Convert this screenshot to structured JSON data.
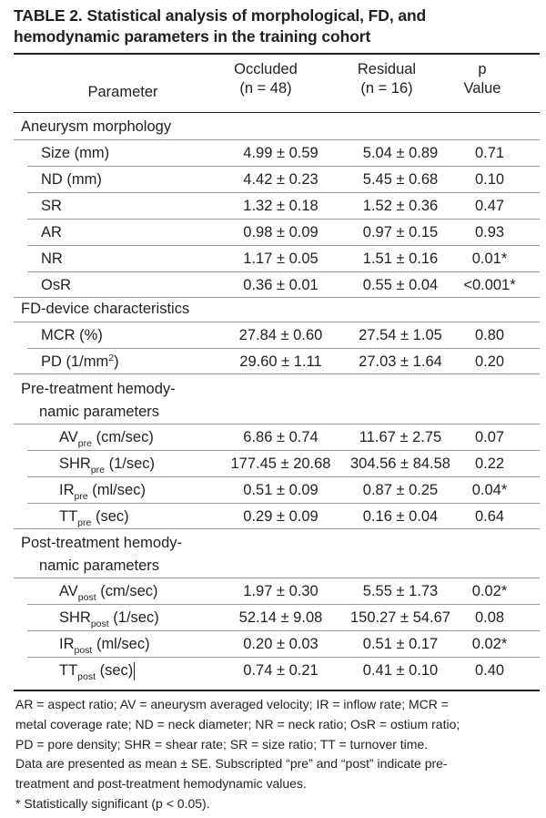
{
  "title": {
    "line1": "TABLE 2. Statistical analysis of morphological, FD, and",
    "line2": "hemodynamic parameters in the training cohort"
  },
  "header": {
    "parameter": "Parameter",
    "occluded_line1": "Occluded",
    "occluded_line2": "(n = 48)",
    "residual_line1": "Residual",
    "residual_line2": "(n = 16)",
    "p_line1": "p",
    "p_line2": "Value"
  },
  "sections": {
    "morphology": "Aneurysm morphology",
    "device": "FD-device characteristics",
    "pre_line1": "Pre-treatment hemody-",
    "pre_line2": "namic parameters",
    "post_line1": "Post-treatment hemody-",
    "post_line2": "namic parameters"
  },
  "rows": {
    "size": {
      "label": "Size (mm)",
      "occluded": "4.99 ± 0.59",
      "residual": "5.04 ± 0.89",
      "p": "0.71"
    },
    "nd": {
      "label": "ND (mm)",
      "occluded": "4.42 ± 0.23",
      "residual": "5.45 ± 0.68",
      "p": "0.10"
    },
    "sr": {
      "label": "SR",
      "occluded": "1.32 ± 0.18",
      "residual": "1.52 ± 0.36",
      "p": "0.47"
    },
    "ar": {
      "label": "AR",
      "occluded": "0.98 ± 0.09",
      "residual": "0.97 ± 0.15",
      "p": "0.93"
    },
    "nr": {
      "label": "NR",
      "occluded": "1.17 ± 0.05",
      "residual": "1.51 ± 0.16",
      "p": "0.01*"
    },
    "osr": {
      "label": "OsR",
      "occluded": "0.36 ± 0.01",
      "residual": "0.55 ± 0.04",
      "p": "<0.001*"
    },
    "mcr": {
      "label": "MCR (%)",
      "occluded": "27.84 ± 0.60",
      "residual": "27.54 ± 1.05",
      "p": "0.80"
    },
    "pd": {
      "label_main": "PD (1/mm",
      "label_sup": "2",
      "label_end": ")",
      "occluded": "29.60 ± 1.11",
      "residual": "27.03 ± 1.64",
      "p": "0.20"
    },
    "av_pre": {
      "base": "AV",
      "sub": "pre",
      "unit": " (cm/sec)",
      "occluded": "6.86 ± 0.74",
      "residual": "11.67 ± 2.75",
      "p": "0.07"
    },
    "shr_pre": {
      "base": "SHR",
      "sub": "pre",
      "unit": " (1/sec)",
      "occluded": "177.45 ± 20.68",
      "residual": "304.56 ± 84.58",
      "p": "0.22"
    },
    "ir_pre": {
      "base": "IR",
      "sub": "pre",
      "unit": " (ml/sec)",
      "occluded": "0.51 ± 0.09",
      "residual": "0.87 ± 0.25",
      "p": "0.04*"
    },
    "tt_pre": {
      "base": "TT",
      "sub": "pre",
      "unit": " (sec)",
      "occluded": "0.29 ± 0.09",
      "residual": "0.16 ± 0.04",
      "p": "0.64"
    },
    "av_post": {
      "base": "AV",
      "sub": "post",
      "unit": " (cm/sec)",
      "occluded": "1.97 ± 0.30",
      "residual": "5.55 ± 1.73",
      "p": "0.02*"
    },
    "shr_post": {
      "base": "SHR",
      "sub": "post",
      "unit": " (1/sec)",
      "occluded": "52.14 ± 9.08",
      "residual": "150.27 ± 54.67",
      "p": "0.08"
    },
    "ir_post": {
      "base": "IR",
      "sub": "post",
      "unit": " (ml/sec)",
      "occluded": "0.20 ± 0.03",
      "residual": "0.51 ± 0.17",
      "p": "0.02*"
    },
    "tt_post": {
      "base": "TT",
      "sub": "post",
      "unit": " (sec)",
      "occluded": "0.74 ± 0.21",
      "residual": "0.41 ± 0.10",
      "p": "0.40"
    }
  },
  "footer": {
    "l1": "AR = aspect ratio; AV = aneurysm averaged velocity; IR = inflow rate; MCR =",
    "l2": "metal coverage rate; ND = neck diameter; NR = neck ratio; OsR = ostium ratio;",
    "l3": "PD = pore density; SHR = shear rate; SR = size ratio; TT = turnover time.",
    "l4": "Data are presented as mean ± SE. Subscripted “pre” and “post” indicate pre-",
    "l5": "treatment and post-treatment hemodynamic values.",
    "l6": "* Statistically significant (p < 0.05)."
  }
}
